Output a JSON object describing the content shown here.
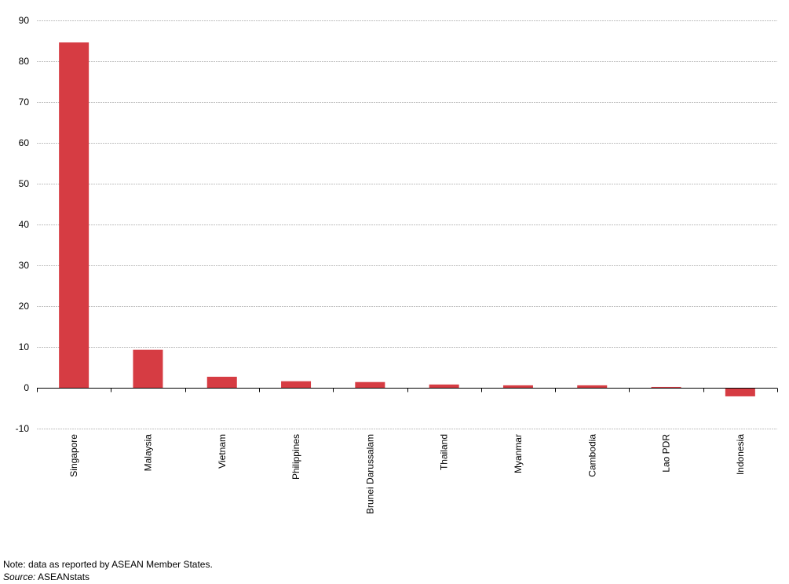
{
  "chart_data": {
    "type": "bar",
    "title": "",
    "xlabel": "",
    "ylabel": "",
    "ylim": [
      -10,
      90
    ],
    "yticks": [
      -10,
      0,
      10,
      20,
      30,
      40,
      50,
      60,
      70,
      80,
      90
    ],
    "grid": true,
    "categories": [
      "Singapore",
      "Malaysia",
      "Vietnam",
      "Philippines",
      "Brunei Darussalam",
      "Thailand",
      "Myanmar",
      "Cambodia",
      "Lao PDR",
      "Indonesia"
    ],
    "values": [
      84.6,
      9.3,
      2.7,
      1.6,
      1.4,
      0.8,
      0.6,
      0.6,
      0.2,
      -2.1
    ],
    "colors": {
      "bar": "#d63c43",
      "grid": "#c0c0c0",
      "axis": "#000000"
    }
  },
  "footer": {
    "note": "Note: data as reported by ASEAN Member States.",
    "source_label": "Source:",
    "source_text": "ASEANstats"
  }
}
